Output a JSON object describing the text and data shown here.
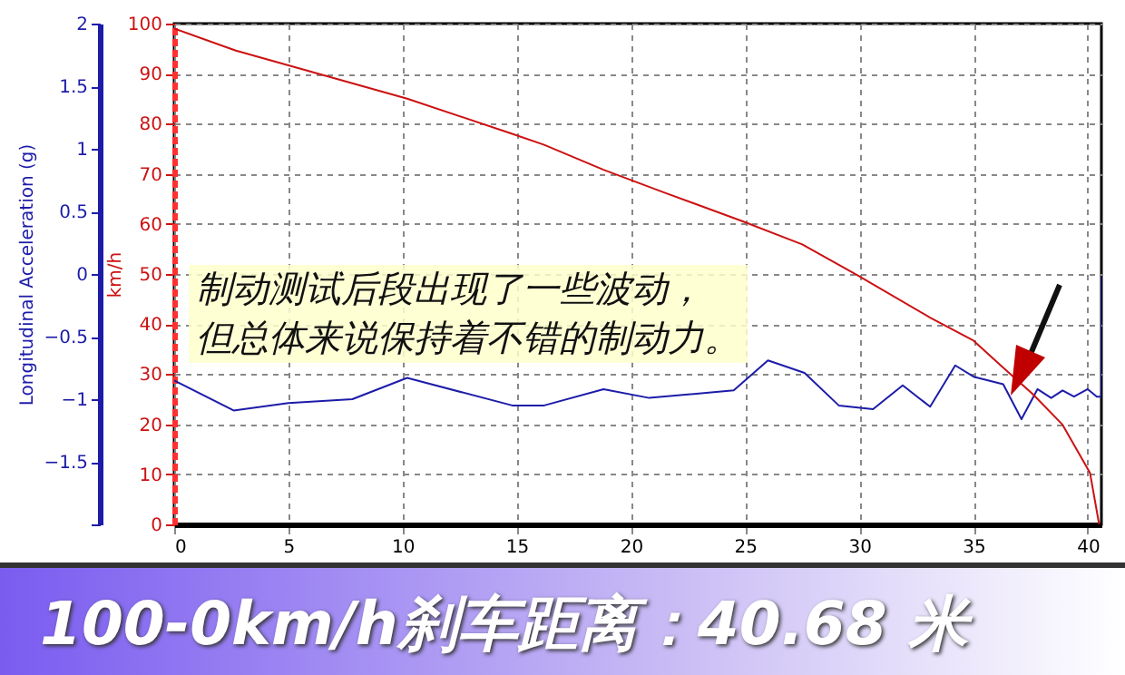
{
  "chart_data": {
    "type": "line",
    "title": "100-0km/h刹车距离：40.68 米",
    "ylabel": "Longitudinal Acceleration (g)",
    "y2label": "km/h",
    "annotations": [
      "制动测试后段出现了一些波动，",
      "但总体来说保持着不错的制动力。"
    ],
    "xlim": [
      0,
      40.6
    ],
    "xticks": [
      0,
      5,
      10,
      15,
      20,
      25,
      30,
      35,
      40
    ],
    "ylim": [
      -2,
      2
    ],
    "yticks": [
      {
        "value": -2,
        "label": null
      },
      -1.5,
      -1,
      -0.5,
      0,
      0.5,
      1,
      1.5,
      2
    ],
    "y2lim": [
      0,
      100
    ],
    "y2ticks": [
      0,
      10,
      20,
      30,
      40,
      50,
      60,
      70,
      80,
      90,
      100
    ],
    "grid": true,
    "series": [
      {
        "color": "#1c1ca8",
        "x": [
          0,
          2.6,
          5,
          7.8,
          10.2,
          14.8,
          16.2,
          18.8,
          20.8,
          24.5,
          26,
          27.6,
          29.1,
          30.6,
          31.9,
          33.1,
          34.2,
          35,
          36.3,
          37.1,
          37.8,
          38.4,
          38.9,
          39.4,
          40,
          40.4,
          40.6,
          40.6
        ],
        "values": [
          -0.85,
          -1.09,
          -1.03,
          -1,
          -0.83,
          -1.05,
          -1.05,
          -0.92,
          -0.99,
          -0.93,
          -0.69,
          -0.79,
          -1.05,
          -1.08,
          -0.89,
          -1.06,
          -0.73,
          -0.82,
          -0.88,
          -1.16,
          -0.92,
          -0.99,
          -0.93,
          -0.98,
          -0.92,
          -0.98,
          -0.98,
          -0.02
        ]
      },
      {
        "color": "#cc1111",
        "axis": "y2",
        "x": [
          0,
          2.7,
          10.2,
          14.8,
          16.2,
          18.8,
          21.5,
          24.9,
          27.5,
          29.9,
          33.1,
          35,
          36.3,
          37.6,
          38.9,
          40.1,
          40.5
        ],
        "values": [
          99,
          94.6,
          85,
          78,
          75.8,
          70.8,
          66.2,
          60.5,
          55.9,
          49.8,
          41.3,
          36.7,
          31.3,
          26,
          19.9,
          10.3,
          0
        ]
      }
    ]
  }
}
